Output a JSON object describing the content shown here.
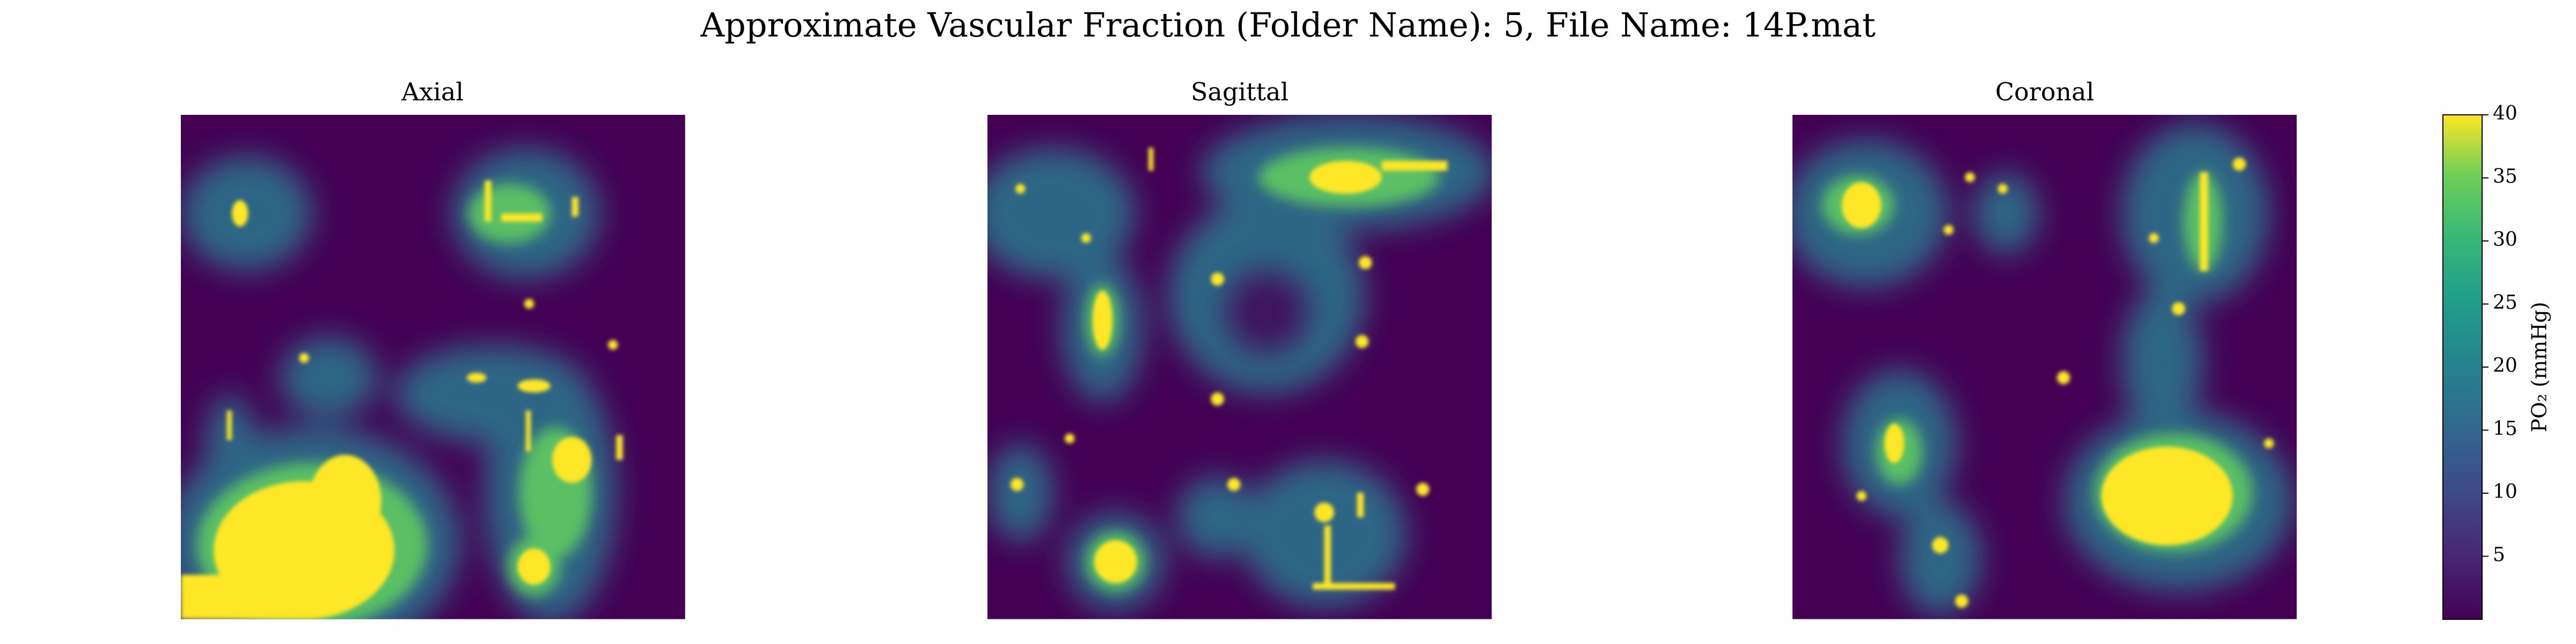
{
  "chart_data": {
    "type": "heatmap",
    "title": "Approximate Vascular Fraction (Folder Name): 5, File Name: 14P.mat",
    "panels": [
      {
        "title": "Axial"
      },
      {
        "title": "Sagittal"
      },
      {
        "title": "Coronal"
      }
    ],
    "colorbar": {
      "label": "PO₂ (mmHg)",
      "lim": [
        0,
        40
      ],
      "ticks": [
        5,
        10,
        15,
        20,
        25,
        30,
        35,
        40
      ],
      "colormap": "viridis"
    }
  }
}
